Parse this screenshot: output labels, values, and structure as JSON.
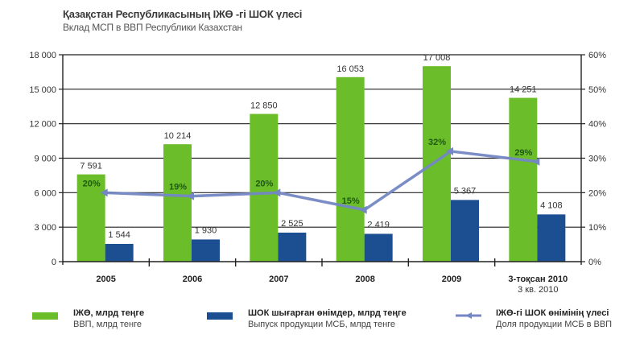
{
  "header": {
    "title": "Қазақстан Республикасының ІЖӨ -гі ШОК үлесі",
    "subtitle": "Вклад МСП в ВВП Республики Казахстан"
  },
  "colors": {
    "gdp": "#6cbd2a",
    "sme": "#1b4f91",
    "share_line": "#7487c4",
    "grid": "#222222",
    "pct_label": "#1e5a12"
  },
  "chart_data": {
    "type": "bar",
    "title": "Қазақстан Республикасының ІЖӨ -гі ШОК үлесі",
    "subtitle": "Вклад МСП в ВВП Республики Казахстан",
    "categories": [
      "2005",
      "2006",
      "2007",
      "2008",
      "2009",
      "3-тоқсан 2010"
    ],
    "category_sublabels": [
      "",
      "",
      "",
      "",
      "",
      "3 кв. 2010"
    ],
    "series": [
      {
        "name": "ІЖӨ, млрд теңге",
        "name_ru": "ВВП, млрд тенге",
        "type": "bar",
        "axis": "left",
        "values": [
          7591,
          10214,
          12850,
          16053,
          17008,
          14251
        ],
        "labels": [
          "7 591",
          "10 214",
          "12 850",
          "16 053",
          "17 008",
          "14 251"
        ]
      },
      {
        "name": "ШОК шығарған өнімдер, млрд теңге",
        "name_ru": "Выпуск продукции МСБ, млрд тенге",
        "type": "bar",
        "axis": "left",
        "values": [
          1544,
          1930,
          2525,
          2419,
          5367,
          4108
        ],
        "labels": [
          "1 544",
          "1 930",
          "2 525",
          "2 419",
          "5 367",
          "4 108"
        ]
      },
      {
        "name": "ІЖӨ-гі ШОК өнімінің үлесі",
        "name_ru": "Доля продукции МСБ в ВВП",
        "type": "line",
        "axis": "right",
        "values": [
          20,
          19,
          20,
          15,
          32,
          29
        ],
        "labels": [
          "20%",
          "19%",
          "20%",
          "15%",
          "32%",
          "29%"
        ]
      }
    ],
    "y_left": {
      "ylim": [
        0,
        18000
      ],
      "ticks": [
        0,
        3000,
        6000,
        9000,
        12000,
        15000,
        18000
      ],
      "tick_labels": [
        "0",
        "3 000",
        "6 000",
        "9 000",
        "12 000",
        "15 000",
        "18 000"
      ]
    },
    "y_right": {
      "ylim": [
        0,
        60
      ],
      "ticks": [
        0,
        10,
        20,
        30,
        40,
        50,
        60
      ],
      "tick_labels": [
        "0%",
        "10%",
        "20%",
        "30%",
        "40%",
        "50%",
        "60%"
      ]
    },
    "xlabel": "",
    "ylabel": "",
    "grid": true,
    "legend_position": "bottom"
  }
}
